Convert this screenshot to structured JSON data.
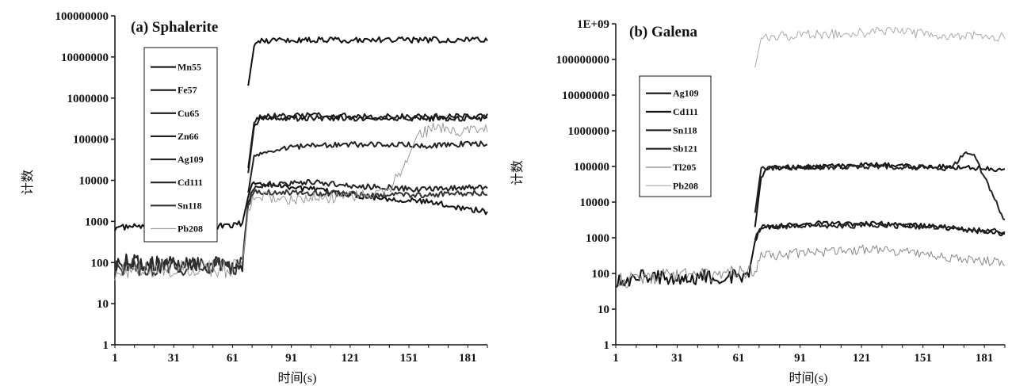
{
  "chart_data": [
    {
      "type": "line",
      "title": "(a)  Sphalerite",
      "xlabel": "时间(s)",
      "ylabel": "计数",
      "y_scale": "log",
      "ylim": [
        1,
        100000000
      ],
      "xlim": [
        1,
        191
      ],
      "x_ticks": [
        "1",
        "31",
        "61",
        "91",
        "121",
        "151",
        "181"
      ],
      "y_ticks": [
        "1",
        "10",
        "100",
        "1000",
        "10000",
        "100000",
        "1000000",
        "10000000",
        "100000000"
      ],
      "legend": "top-left",
      "series": [
        {
          "name": "Mn55",
          "color": "#111111",
          "points": [
            [
              1,
              700
            ],
            [
              20,
              800
            ],
            [
              40,
              700
            ],
            [
              60,
              800
            ],
            [
              66,
              900
            ],
            [
              69,
              4000
            ],
            [
              71,
              9000
            ],
            [
              90,
              7000
            ],
            [
              130,
              4000
            ],
            [
              160,
              3000
            ],
            [
              191,
              1700
            ]
          ]
        },
        {
          "name": "Fe57",
          "color": "#111111",
          "points": [
            [
              69,
              2000000
            ],
            [
              72,
              18000000
            ],
            [
              75,
              25000000
            ],
            [
              100,
              26000000
            ],
            [
              130,
              26000000
            ],
            [
              160,
              26000000
            ],
            [
              191,
              27000000
            ]
          ]
        },
        {
          "name": "Cu65",
          "color": "#1a1a1a",
          "points": [
            [
              69,
              15000
            ],
            [
              72,
              200000
            ],
            [
              75,
              300000
            ],
            [
              100,
              330000
            ],
            [
              130,
              320000
            ],
            [
              160,
              320000
            ],
            [
              191,
              330000
            ]
          ]
        },
        {
          "name": "Zn66",
          "color": "#1a1a1a",
          "points": [
            [
              69,
              20000
            ],
            [
              72,
              250000
            ],
            [
              75,
              350000
            ],
            [
              100,
              380000
            ],
            [
              130,
              360000
            ],
            [
              160,
              350000
            ],
            [
              191,
              360000
            ]
          ]
        },
        {
          "name": "Ag109",
          "color": "#222222",
          "points": [
            [
              69,
              5000
            ],
            [
              72,
              40000
            ],
            [
              80,
              55000
            ],
            [
              100,
              70000
            ],
            [
              130,
              75000
            ],
            [
              160,
              70000
            ],
            [
              191,
              80000
            ]
          ]
        },
        {
          "name": "Cd111",
          "color": "#222222",
          "points": [
            [
              1,
              100
            ],
            [
              20,
              90
            ],
            [
              40,
              90
            ],
            [
              60,
              100
            ],
            [
              66,
              100
            ],
            [
              69,
              3000
            ],
            [
              72,
              7000
            ],
            [
              100,
              9000
            ],
            [
              130,
              7000
            ],
            [
              160,
              6000
            ],
            [
              191,
              7000
            ]
          ]
        },
        {
          "name": "Sn118",
          "color": "#333333",
          "points": [
            [
              1,
              80
            ],
            [
              30,
              80
            ],
            [
              60,
              80
            ],
            [
              66,
              80
            ],
            [
              69,
              2500
            ],
            [
              72,
              5000
            ],
            [
              100,
              5000
            ],
            [
              130,
              4500
            ],
            [
              160,
              4500
            ],
            [
              191,
              5000
            ]
          ]
        },
        {
          "name": "Pb208",
          "color": "#999999",
          "points": [
            [
              1,
              60
            ],
            [
              30,
              70
            ],
            [
              60,
              70
            ],
            [
              66,
              80
            ],
            [
              69,
              2000
            ],
            [
              72,
              4000
            ],
            [
              90,
              3500
            ],
            [
              120,
              4000
            ],
            [
              140,
              5000
            ],
            [
              150,
              30000
            ],
            [
              155,
              120000
            ],
            [
              165,
              200000
            ],
            [
              175,
              150000
            ],
            [
              191,
              200000
            ]
          ]
        }
      ]
    },
    {
      "type": "line",
      "title": "(b)  Galena",
      "xlabel": "时间(s)",
      "ylabel": "计数",
      "y_scale": "log",
      "ylim": [
        1,
        1000000000
      ],
      "xlim": [
        1,
        191
      ],
      "x_ticks": [
        "1",
        "31",
        "61",
        "91",
        "121",
        "151",
        "181"
      ],
      "y_ticks": [
        "1",
        "10",
        "100",
        "1000",
        "10000",
        "100000",
        "1000000",
        "10000000",
        "100000000",
        "1E+09"
      ],
      "legend": "top-left",
      "series": [
        {
          "name": "Ag109",
          "color": "#111111",
          "points": [
            [
              69,
              2000
            ],
            [
              72,
              50000
            ],
            [
              75,
              90000
            ],
            [
              100,
              100000
            ],
            [
              130,
              110000
            ],
            [
              160,
              100000
            ],
            [
              180,
              90000
            ],
            [
              191,
              80000
            ]
          ]
        },
        {
          "name": "Cd111",
          "color": "#111111",
          "points": [
            [
              1,
              70
            ],
            [
              20,
              80
            ],
            [
              40,
              80
            ],
            [
              60,
              90
            ],
            [
              66,
              100
            ],
            [
              69,
              800
            ],
            [
              72,
              2000
            ],
            [
              100,
              2500
            ],
            [
              130,
              2500
            ],
            [
              160,
              2000
            ],
            [
              191,
              1300
            ]
          ]
        },
        {
          "name": "Sn118",
          "color": "#222222",
          "points": [
            [
              69,
              1000
            ],
            [
              72,
              2000
            ],
            [
              100,
              2200
            ],
            [
              130,
              2200
            ],
            [
              160,
              2000
            ],
            [
              191,
              1500
            ]
          ]
        },
        {
          "name": "Sb121",
          "color": "#222222",
          "points": [
            [
              69,
              5000
            ],
            [
              72,
              90000
            ],
            [
              100,
              95000
            ],
            [
              130,
              100000
            ],
            [
              165,
              90000
            ],
            [
              172,
              250000
            ],
            [
              176,
              200000
            ],
            [
              182,
              40000
            ],
            [
              191,
              3000
            ]
          ]
        },
        {
          "name": "Tl205",
          "color": "#888888",
          "points": [
            [
              1,
              60
            ],
            [
              20,
              80
            ],
            [
              40,
              90
            ],
            [
              60,
              100
            ],
            [
              66,
              100
            ],
            [
              69,
              150
            ],
            [
              72,
              300
            ],
            [
              100,
              400
            ],
            [
              130,
              500
            ],
            [
              160,
              300
            ],
            [
              191,
              200
            ]
          ]
        },
        {
          "name": "Pb208",
          "color": "#aaaaaa",
          "points": [
            [
              69,
              60000000
            ],
            [
              72,
              400000000
            ],
            [
              80,
              450000000
            ],
            [
              100,
              500000000
            ],
            [
              130,
              600000000
            ],
            [
              160,
              500000000
            ],
            [
              191,
              400000000
            ]
          ]
        }
      ]
    }
  ]
}
